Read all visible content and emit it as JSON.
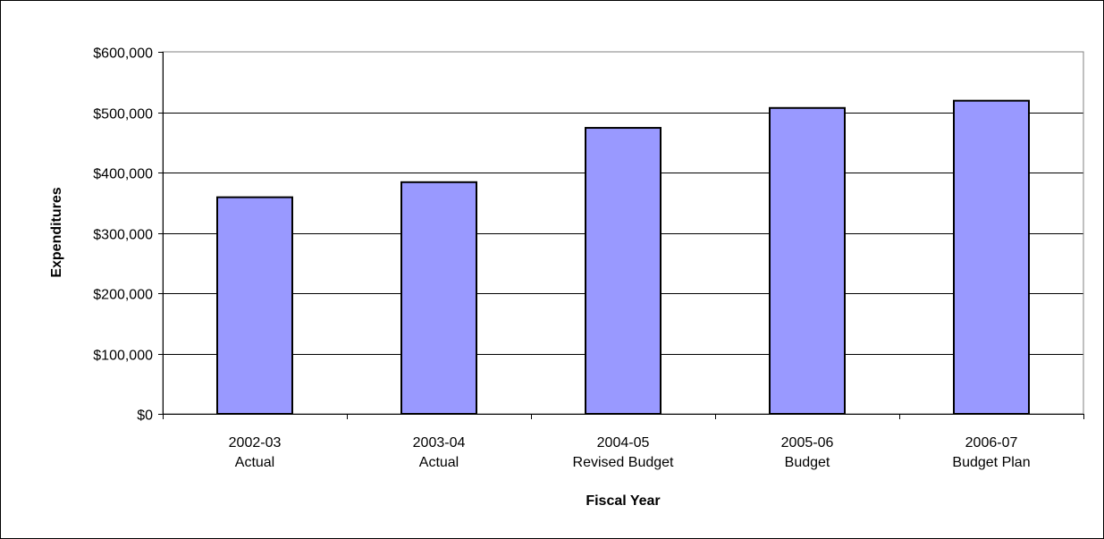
{
  "chart_data": {
    "type": "bar",
    "title": "",
    "xlabel": "Fiscal Year",
    "ylabel": "Expenditures",
    "categories": [
      [
        "2002-03",
        "Actual"
      ],
      [
        "2003-04",
        "Actual"
      ],
      [
        "2004-05",
        "Revised Budget"
      ],
      [
        "2005-06",
        "Budget"
      ],
      [
        "2006-07",
        "Budget Plan"
      ]
    ],
    "values": [
      359000,
      384000,
      474000,
      507000,
      519000
    ],
    "ylim": [
      0,
      600000
    ],
    "yticks": [
      0,
      100000,
      200000,
      300000,
      400000,
      500000,
      600000
    ],
    "ytick_labels": [
      "$0",
      "$100,000",
      "$200,000",
      "$300,000",
      "$400,000",
      "$500,000",
      "$600,000"
    ],
    "grid": true,
    "legend": "none",
    "colors": {
      "bar_fill": "#9999ff",
      "bar_stroke": "#000000",
      "grid": "#000000",
      "plot_border": "#808080",
      "background": "#ffffff"
    }
  }
}
